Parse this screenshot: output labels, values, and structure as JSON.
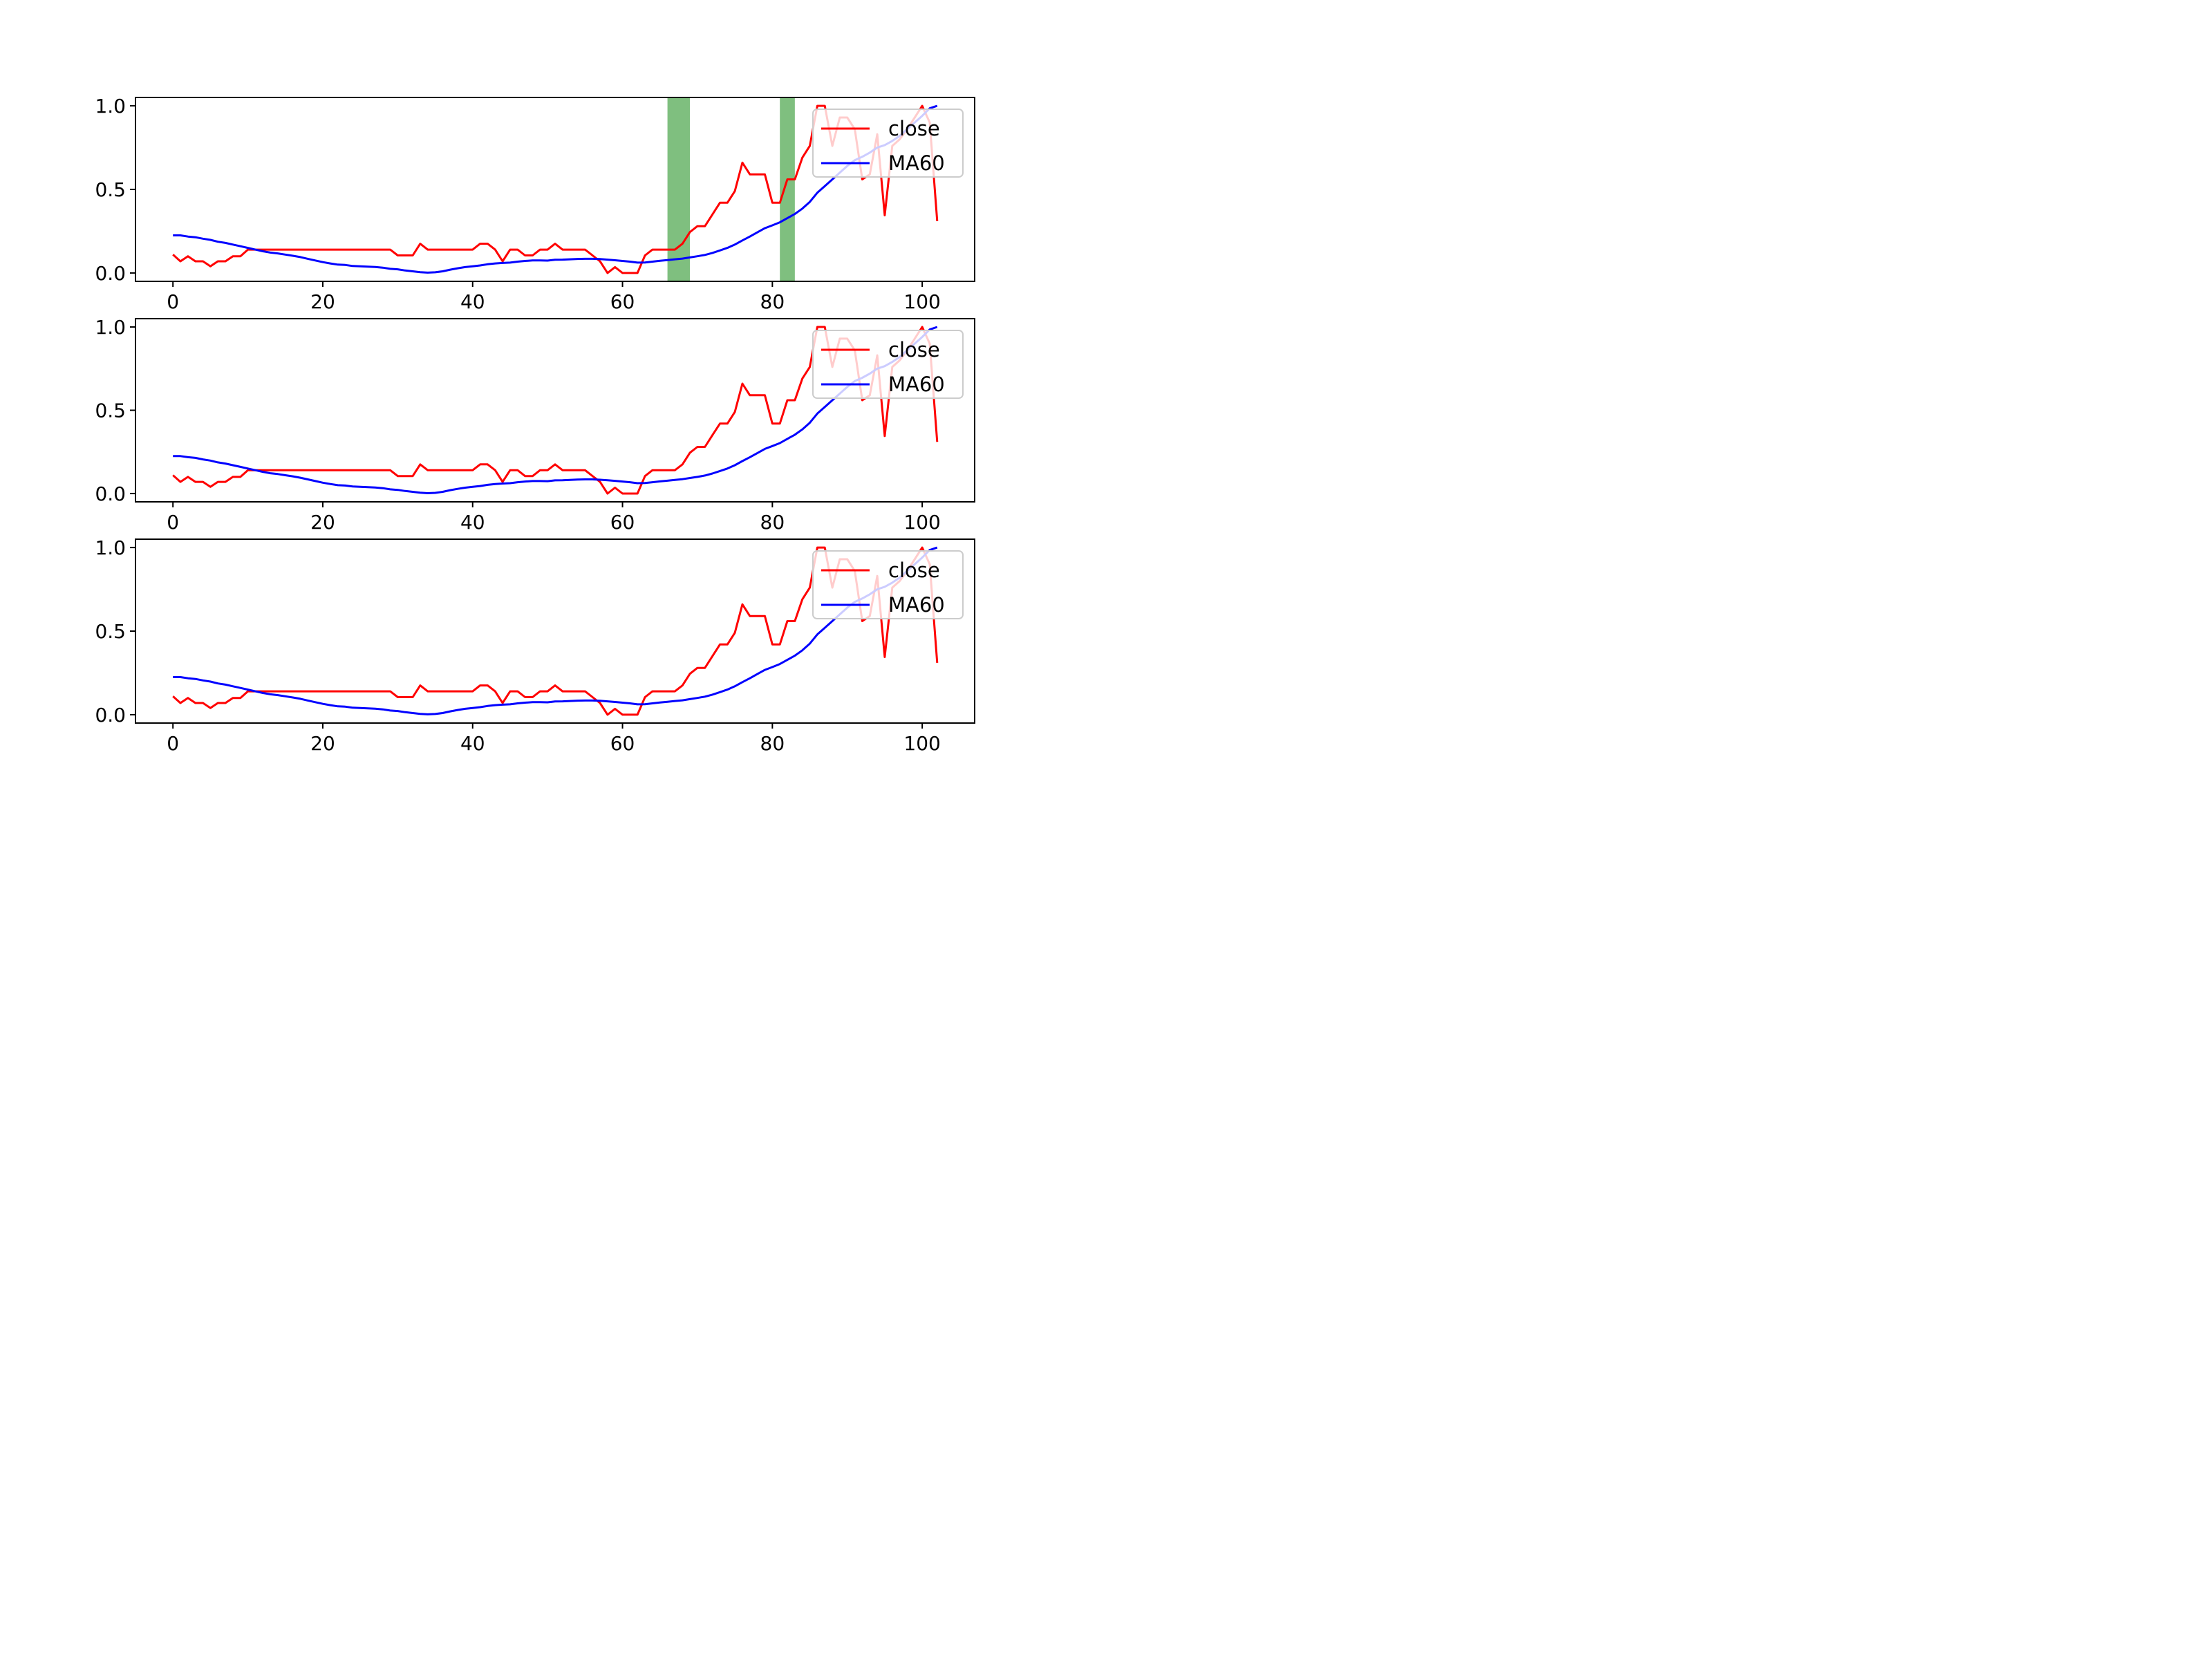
{
  "chart_data": [
    {
      "type": "line",
      "x": [
        0,
        1,
        2,
        3,
        4,
        5,
        6,
        7,
        8,
        9,
        10,
        11,
        12,
        13,
        14,
        15,
        16,
        17,
        18,
        19,
        20,
        21,
        22,
        23,
        24,
        25,
        26,
        27,
        28,
        29,
        30,
        31,
        32,
        33,
        34,
        35,
        36,
        37,
        38,
        39,
        40,
        41,
        42,
        43,
        44,
        45,
        46,
        47,
        48,
        49,
        50,
        51,
        52,
        53,
        54,
        55,
        56,
        57,
        58,
        59,
        60,
        61,
        62,
        63,
        64,
        65,
        66,
        67,
        68,
        69,
        70,
        71,
        72,
        73,
        74,
        75,
        76,
        77,
        78,
        79,
        80,
        81,
        82,
        83,
        84,
        85,
        86,
        87,
        88,
        89,
        90,
        91,
        92,
        93,
        94,
        95,
        96,
        97,
        98,
        99,
        100,
        101,
        102
      ],
      "series": [
        {
          "name": "close",
          "color": "#ff0000",
          "values": [
            0.11,
            0.07,
            0.1,
            0.07,
            0.07,
            0.04,
            0.07,
            0.07,
            0.1,
            0.1,
            0.14,
            0.14,
            0.14,
            0.14,
            0.14,
            0.14,
            0.14,
            0.14,
            0.14,
            0.14,
            0.14,
            0.14,
            0.14,
            0.14,
            0.14,
            0.14,
            0.14,
            0.14,
            0.14,
            0.14,
            0.105,
            0.105,
            0.105,
            0.175,
            0.14,
            0.14,
            0.14,
            0.14,
            0.14,
            0.14,
            0.14,
            0.175,
            0.175,
            0.14,
            0.07,
            0.14,
            0.14,
            0.105,
            0.105,
            0.14,
            0.14,
            0.175,
            0.14,
            0.14,
            0.14,
            0.14,
            0.105,
            0.07,
            0.0,
            0.035,
            0.0,
            0.0,
            0.0,
            0.105,
            0.14,
            0.14,
            0.14,
            0.14,
            0.175,
            0.245,
            0.28,
            0.28,
            0.35,
            0.42,
            0.42,
            0.49,
            0.66,
            0.59,
            0.59,
            0.59,
            0.42,
            0.42,
            0.56,
            0.56,
            0.69,
            0.76,
            1.0,
            1.0,
            0.76,
            0.93,
            0.93,
            0.86,
            0.56,
            0.59,
            0.83,
            0.345,
            0.76,
            0.8,
            0.86,
            0.93,
            1.0,
            0.9,
            0.31
          ]
        },
        {
          "name": "MA60",
          "color": "#0000ff",
          "values": [
            0.225,
            0.225,
            0.218,
            0.214,
            0.205,
            0.198,
            0.187,
            0.18,
            0.17,
            0.16,
            0.15,
            0.14,
            0.13,
            0.122,
            0.117,
            0.11,
            0.103,
            0.095,
            0.085,
            0.075,
            0.065,
            0.057,
            0.05,
            0.048,
            0.042,
            0.04,
            0.038,
            0.036,
            0.032,
            0.025,
            0.022,
            0.015,
            0.01,
            0.005,
            0.002,
            0.004,
            0.01,
            0.02,
            0.028,
            0.035,
            0.04,
            0.045,
            0.052,
            0.057,
            0.06,
            0.062,
            0.068,
            0.072,
            0.075,
            0.075,
            0.074,
            0.079,
            0.08,
            0.082,
            0.084,
            0.085,
            0.085,
            0.083,
            0.08,
            0.076,
            0.072,
            0.068,
            0.062,
            0.063,
            0.068,
            0.073,
            0.077,
            0.082,
            0.086,
            0.093,
            0.1,
            0.108,
            0.12,
            0.135,
            0.15,
            0.17,
            0.195,
            0.218,
            0.243,
            0.268,
            0.285,
            0.303,
            0.328,
            0.353,
            0.385,
            0.425,
            0.48,
            0.52,
            0.56,
            0.6,
            0.64,
            0.675,
            0.695,
            0.72,
            0.75,
            0.765,
            0.79,
            0.82,
            0.86,
            0.9,
            0.94,
            0.985,
            1.0
          ]
        }
      ],
      "highlight_spans": [
        [
          66,
          69
        ],
        [
          81,
          83
        ]
      ],
      "xticks": [
        0,
        20,
        40,
        60,
        80,
        100
      ],
      "yticks": [
        "0.0",
        "0.5",
        "1.0"
      ],
      "xlim": [
        -5,
        107
      ],
      "ylim": [
        -0.05,
        1.05
      ],
      "legend_position": "upper right",
      "grid": false
    },
    {
      "type": "line",
      "series_ref": "same as first panel",
      "highlight_spans": [],
      "xticks": [
        0,
        20,
        40,
        60,
        80,
        100
      ],
      "yticks": [
        "0.0",
        "0.5",
        "1.0"
      ],
      "legend_position": "upper right",
      "grid": false
    },
    {
      "type": "line",
      "series_ref": "same as first panel",
      "highlight_spans": [],
      "xticks": [
        0,
        20,
        40,
        60,
        80,
        100
      ],
      "yticks": [
        "0.0",
        "0.5",
        "1.0"
      ],
      "legend_position": "upper right",
      "grid": false
    }
  ]
}
